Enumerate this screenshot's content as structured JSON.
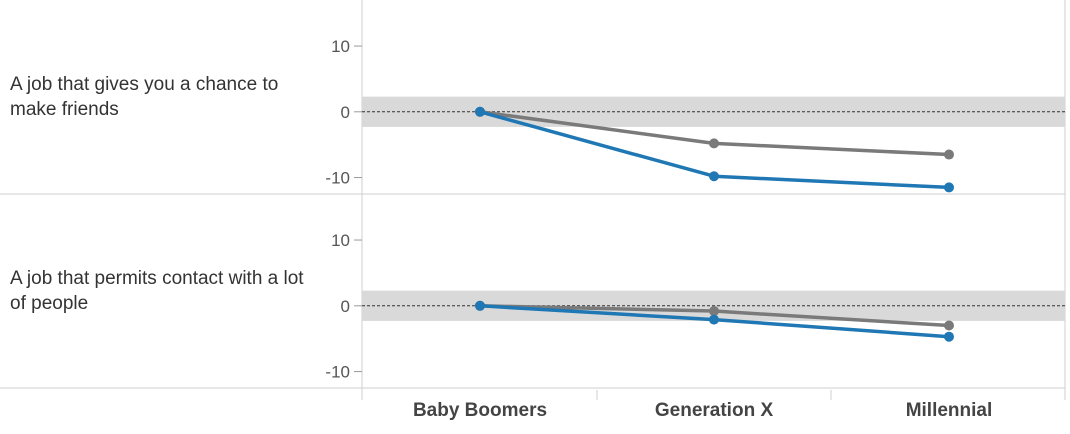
{
  "chart_data": {
    "type": "line",
    "categories": [
      "Baby Boomers",
      "Generation X",
      "Millennial"
    ],
    "yticks": [
      10,
      0,
      -10
    ],
    "colors": {
      "blue": "#1f77b4",
      "gray": "#7a7a7a",
      "band": "#d9d9d9"
    },
    "panels": [
      {
        "label": "A job that gives you a chance to make friends",
        "ylim": [
          -12.5,
          17
        ],
        "series": [
          {
            "color": "gray",
            "values": [
              0,
              -4.8,
              -6.5
            ]
          },
          {
            "color": "blue",
            "values": [
              0,
              -9.8,
              -11.5
            ]
          }
        ]
      },
      {
        "label": "A job that permits contact with a lot of people",
        "ylim": [
          -12.5,
          17
        ],
        "series": [
          {
            "color": "gray",
            "values": [
              0,
              -0.8,
              -3.0
            ]
          },
          {
            "color": "blue",
            "values": [
              0,
              -2.1,
              -4.7
            ]
          }
        ]
      }
    ]
  }
}
